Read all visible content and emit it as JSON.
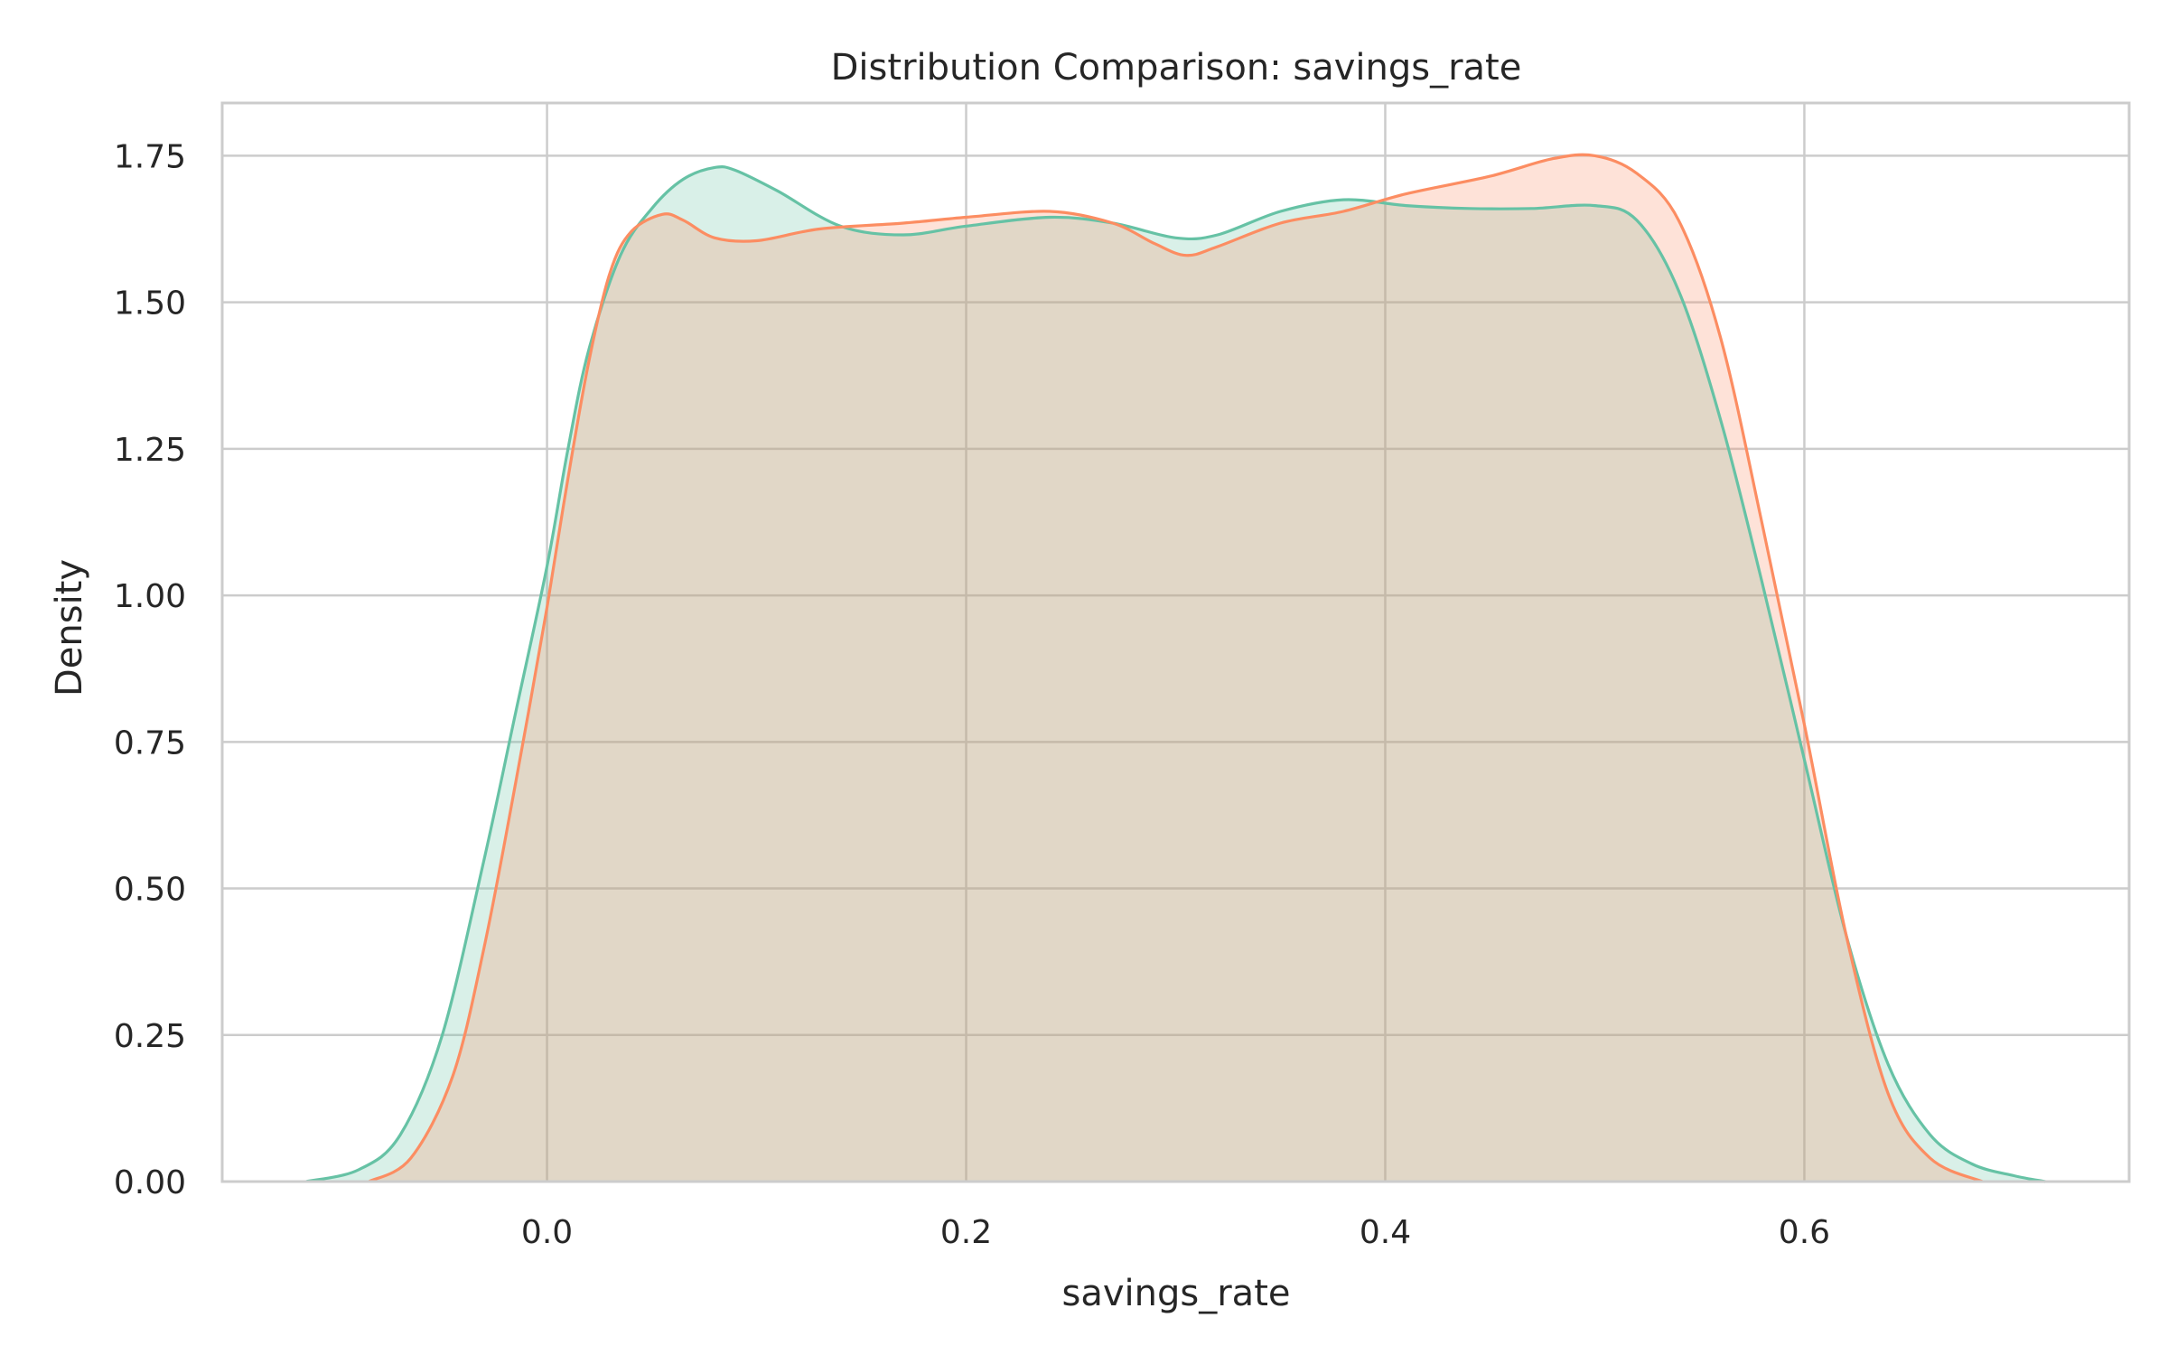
{
  "chart_data": {
    "type": "area",
    "title": "Distribution Comparison: savings_rate",
    "xlabel": "savings_rate",
    "ylabel": "Density",
    "xlim": [
      -0.155,
      0.755
    ],
    "ylim": [
      0,
      1.84
    ],
    "xticks": [
      0.0,
      0.2,
      0.4,
      0.6
    ],
    "xtick_labels": [
      "0.0",
      "0.2",
      "0.4",
      "0.6"
    ],
    "yticks": [
      0.0,
      0.25,
      0.5,
      0.75,
      1.0,
      1.25,
      1.5,
      1.75
    ],
    "ytick_labels": [
      "0.00",
      "0.25",
      "0.50",
      "0.75",
      "1.00",
      "1.25",
      "1.50",
      "1.75"
    ],
    "grid": true,
    "legend": false,
    "series": [
      {
        "color": "#66c2a5",
        "fill_opacity": 0.25,
        "x": [
          -0.115,
          -0.09,
          -0.07,
          -0.05,
          -0.03,
          -0.015,
          0.0,
          0.01,
          0.02,
          0.035,
          0.05,
          0.065,
          0.08,
          0.09,
          0.11,
          0.14,
          0.17,
          0.2,
          0.24,
          0.27,
          0.3,
          0.32,
          0.35,
          0.38,
          0.41,
          0.44,
          0.47,
          0.5,
          0.52,
          0.54,
          0.56,
          0.58,
          0.6,
          0.62,
          0.64,
          0.66,
          0.68,
          0.7,
          0.715
        ],
        "y": [
          0.0,
          0.02,
          0.08,
          0.25,
          0.55,
          0.8,
          1.05,
          1.25,
          1.42,
          1.58,
          1.66,
          1.71,
          1.73,
          1.725,
          1.69,
          1.63,
          1.615,
          1.63,
          1.645,
          1.635,
          1.61,
          1.615,
          1.655,
          1.675,
          1.665,
          1.66,
          1.66,
          1.665,
          1.64,
          1.52,
          1.3,
          1.02,
          0.72,
          0.42,
          0.2,
          0.08,
          0.03,
          0.01,
          0.0
        ]
      },
      {
        "color": "#fc8d62",
        "fill_opacity": 0.25,
        "x": [
          -0.085,
          -0.065,
          -0.045,
          -0.03,
          -0.015,
          0.0,
          0.01,
          0.02,
          0.03,
          0.04,
          0.055,
          0.065,
          0.08,
          0.1,
          0.13,
          0.17,
          0.2,
          0.24,
          0.27,
          0.29,
          0.305,
          0.32,
          0.35,
          0.38,
          0.41,
          0.45,
          0.48,
          0.5,
          0.52,
          0.54,
          0.56,
          0.58,
          0.6,
          0.62,
          0.64,
          0.66,
          0.685
        ],
        "y": [
          0.0,
          0.04,
          0.18,
          0.4,
          0.68,
          0.98,
          1.2,
          1.4,
          1.55,
          1.62,
          1.65,
          1.64,
          1.61,
          1.605,
          1.625,
          1.635,
          1.645,
          1.655,
          1.635,
          1.6,
          1.58,
          1.595,
          1.635,
          1.655,
          1.685,
          1.715,
          1.745,
          1.75,
          1.72,
          1.64,
          1.44,
          1.12,
          0.78,
          0.42,
          0.15,
          0.04,
          0.0
        ]
      }
    ]
  }
}
